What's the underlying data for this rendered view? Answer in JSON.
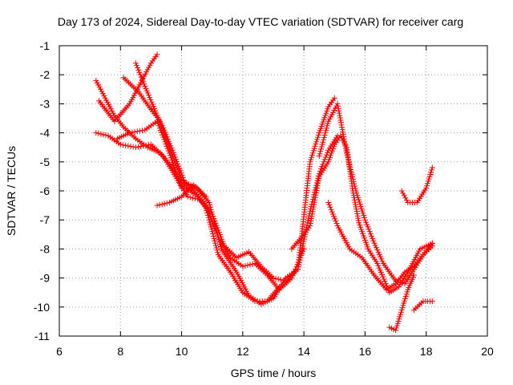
{
  "chart_data": {
    "type": "scatter",
    "title": "Day 173 of 2024, Sidereal Day-to-day VTEC variation (SDTVAR) for receiver carg",
    "xlabel": "GPS time / hours",
    "ylabel": "SDTVAR / TECUs",
    "xlim": [
      6,
      20
    ],
    "ylim": [
      -11,
      -1
    ],
    "xticks": [
      6,
      8,
      10,
      12,
      14,
      16,
      18,
      20
    ],
    "yticks": [
      -11,
      -10,
      -9,
      -8,
      -7,
      -6,
      -5,
      -4,
      -3,
      -2,
      -1
    ],
    "grid": true,
    "marker": "plus",
    "color": "#ff0000",
    "series": [
      {
        "name": "trace-1",
        "x": [
          7.3,
          7.8,
          8.3,
          8.7,
          9.0,
          9.2
        ],
        "y": [
          -2.9,
          -3.6,
          -3.0,
          -2.2,
          -1.6,
          -1.3
        ]
      },
      {
        "name": "trace-2",
        "x": [
          7.2,
          7.5,
          7.8,
          8.1,
          8.5,
          8.9,
          9.3,
          9.7,
          10.0,
          10.4
        ],
        "y": [
          -2.2,
          -2.8,
          -3.4,
          -3.8,
          -4.2,
          -4.5,
          -4.7,
          -5.2,
          -5.7,
          -6.1
        ]
      },
      {
        "name": "trace-3",
        "x": [
          8.5,
          8.8,
          9.2,
          9.6,
          10.0,
          10.4,
          10.8,
          11.2,
          11.6,
          12.0,
          12.4,
          12.8,
          13.2,
          13.6,
          14.0
        ],
        "y": [
          -1.6,
          -2.4,
          -3.4,
          -4.5,
          -5.6,
          -6.0,
          -6.5,
          -7.6,
          -8.3,
          -8.6,
          -8.5,
          -8.9,
          -9.4,
          -9.0,
          -8.0
        ]
      },
      {
        "name": "trace-4",
        "x": [
          7.2,
          7.6,
          8.0,
          8.5,
          9.0,
          9.4,
          9.8,
          10.2,
          10.6,
          11.0,
          11.4,
          11.8,
          12.2,
          12.6,
          13.0,
          13.4,
          13.8,
          14.2,
          14.5,
          14.8,
          15.0
        ],
        "y": [
          -4.0,
          -4.1,
          -4.4,
          -4.5,
          -4.4,
          -4.8,
          -5.5,
          -6.2,
          -6.3,
          -6.8,
          -7.9,
          -8.3,
          -8.1,
          -8.6,
          -9.0,
          -9.1,
          -8.7,
          -5.0,
          -4.0,
          -3.1,
          -2.8
        ]
      },
      {
        "name": "trace-5",
        "x": [
          8.1,
          8.6,
          9.0,
          9.3,
          9.7,
          10.1,
          10.5,
          10.9,
          11.3,
          11.8,
          12.2,
          12.6,
          13.0,
          13.4,
          13.8,
          14.2,
          14.5,
          14.8,
          15.1
        ],
        "y": [
          -2.1,
          -2.6,
          -3.2,
          -3.6,
          -4.6,
          -5.7,
          -5.9,
          -6.4,
          -8.0,
          -8.8,
          -9.6,
          -9.9,
          -9.7,
          -9.0,
          -8.7,
          -6.7,
          -5.4,
          -4.6,
          -4.1
        ]
      },
      {
        "name": "trace-6",
        "x": [
          7.9,
          8.3,
          8.8,
          9.2,
          9.6,
          10.0,
          10.4,
          10.8,
          11.2,
          11.6,
          12.0,
          12.4,
          12.8,
          13.2
        ],
        "y": [
          -4.2,
          -4.0,
          -3.9,
          -3.6,
          -4.7,
          -5.9,
          -6.0,
          -6.6,
          -8.2,
          -8.8,
          -9.5,
          -9.8,
          -9.8,
          -9.3
        ]
      },
      {
        "name": "trace-7",
        "x": [
          9.2,
          9.6,
          10.0,
          10.4,
          10.8
        ],
        "y": [
          -6.5,
          -6.4,
          -6.2,
          -5.8,
          -6.2
        ]
      },
      {
        "name": "trace-8",
        "x": [
          13.6,
          14.0,
          14.2,
          14.5,
          14.8,
          15.0,
          15.2,
          15.4,
          15.6,
          15.8,
          16.1,
          16.4,
          16.8,
          17.1,
          17.4,
          17.8,
          18.2
        ],
        "y": [
          -8.0,
          -7.5,
          -7.2,
          -5.5,
          -5.0,
          -4.4,
          -4.1,
          -4.5,
          -6.0,
          -7.1,
          -8.0,
          -8.5,
          -9.5,
          -9.3,
          -8.8,
          -8.0,
          -7.8
        ]
      },
      {
        "name": "trace-9",
        "x": [
          14.5,
          14.8,
          15.1,
          15.4,
          15.7,
          16.0,
          16.3,
          16.6,
          17.0,
          17.3,
          17.6,
          17.9,
          18.2
        ],
        "y": [
          -4.8,
          -3.6,
          -3.0,
          -4.7,
          -6.0,
          -7.0,
          -7.8,
          -8.5,
          -9.1,
          -9.2,
          -8.7,
          -8.2,
          -7.8
        ]
      },
      {
        "name": "trace-10",
        "x": [
          14.8,
          15.1,
          15.5,
          15.9,
          16.3,
          16.7,
          17.0,
          17.3,
          17.6,
          17.9,
          18.2
        ],
        "y": [
          -6.4,
          -7.2,
          -8.0,
          -8.3,
          -8.9,
          -9.4,
          -9.2,
          -8.8,
          -8.6,
          -8.2,
          -7.9
        ]
      },
      {
        "name": "trace-11",
        "x": [
          16.8,
          17.0,
          17.2,
          17.4,
          17.6
        ],
        "y": [
          -10.7,
          -10.8,
          -10.1,
          -9.4,
          -8.9
        ]
      },
      {
        "name": "trace-12",
        "x": [
          17.6,
          17.9,
          18.2
        ],
        "y": [
          -10.1,
          -9.8,
          -9.8
        ]
      },
      {
        "name": "trace-13",
        "x": [
          17.2,
          17.4,
          17.7,
          18.0,
          18.2
        ],
        "y": [
          -6.0,
          -6.4,
          -6.4,
          -5.9,
          -5.2
        ]
      }
    ]
  }
}
